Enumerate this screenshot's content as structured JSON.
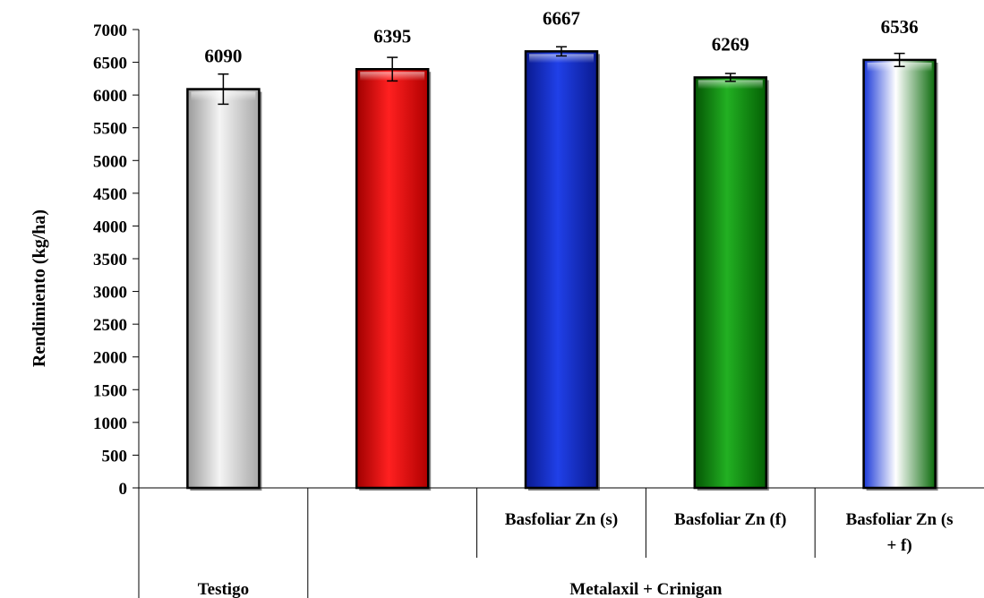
{
  "chart_data": {
    "type": "bar",
    "title": "",
    "ylabel": "Rendimiento (kg/ha)",
    "xlabel": "",
    "ylim": [
      0,
      7000
    ],
    "ytick_step": 500,
    "grid": false,
    "legend": "none",
    "categories": [
      {
        "label": "",
        "value": 6090,
        "err": 230,
        "style": "silver",
        "color": "#d9d9d9"
      },
      {
        "label": "",
        "value": 6395,
        "err": 180,
        "style": "red",
        "color": "#ff0000"
      },
      {
        "label": "Basfoliar Zn (s)",
        "value": 6667,
        "err": 70,
        "style": "blue",
        "color": "#1530d0"
      },
      {
        "label": "Basfoliar Zn (f)",
        "value": 6269,
        "err": 60,
        "style": "green",
        "color": "#119911"
      },
      {
        "label": "Basfoliar Zn (s\n+ f)",
        "value": 6536,
        "err": 100,
        "style": "bluegreen",
        "color": "#3050e0"
      }
    ],
    "groups": [
      {
        "label": "Testigo",
        "span": [
          0,
          0
        ]
      },
      {
        "label": "Metalaxil + Crinigan",
        "span": [
          1,
          4
        ]
      }
    ]
  }
}
